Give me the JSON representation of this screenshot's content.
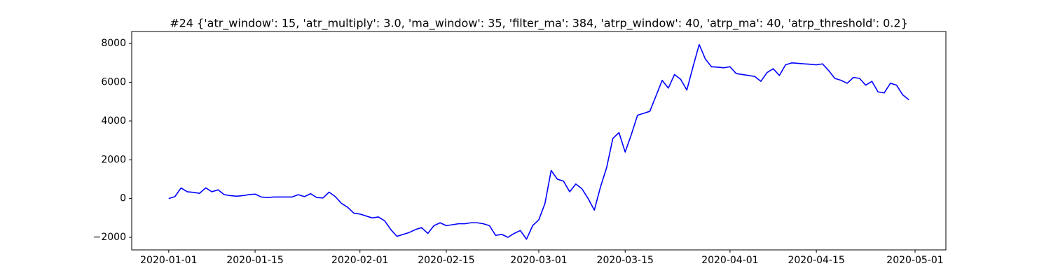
{
  "chart_data": {
    "type": "line",
    "title": "#24 {'atr_window': 15, 'atr_multiply': 3.0, 'ma_window': 35, 'filter_ma': 384, 'atrp_window': 40, 'atrp_ma': 40, 'atrp_threshold': 0.2}",
    "x": [
      "2020-01-01",
      "2020-01-02",
      "2020-01-03",
      "2020-01-04",
      "2020-01-05",
      "2020-01-06",
      "2020-01-07",
      "2020-01-08",
      "2020-01-09",
      "2020-01-10",
      "2020-01-11",
      "2020-01-12",
      "2020-01-13",
      "2020-01-14",
      "2020-01-15",
      "2020-01-16",
      "2020-01-17",
      "2020-01-18",
      "2020-01-19",
      "2020-01-20",
      "2020-01-21",
      "2020-01-22",
      "2020-01-23",
      "2020-01-24",
      "2020-01-25",
      "2020-01-26",
      "2020-01-27",
      "2020-01-28",
      "2020-01-29",
      "2020-01-30",
      "2020-01-31",
      "2020-02-01",
      "2020-02-02",
      "2020-02-03",
      "2020-02-04",
      "2020-02-05",
      "2020-02-06",
      "2020-02-07",
      "2020-02-08",
      "2020-02-09",
      "2020-02-10",
      "2020-02-11",
      "2020-02-12",
      "2020-02-13",
      "2020-02-14",
      "2020-02-15",
      "2020-02-16",
      "2020-02-17",
      "2020-02-18",
      "2020-02-19",
      "2020-02-20",
      "2020-02-21",
      "2020-02-22",
      "2020-02-23",
      "2020-02-24",
      "2020-02-25",
      "2020-02-26",
      "2020-02-27",
      "2020-02-28",
      "2020-02-29",
      "2020-03-01",
      "2020-03-02",
      "2020-03-03",
      "2020-03-04",
      "2020-03-05",
      "2020-03-06",
      "2020-03-07",
      "2020-03-08",
      "2020-03-09",
      "2020-03-10",
      "2020-03-11",
      "2020-03-12",
      "2020-03-13",
      "2020-03-14",
      "2020-03-15",
      "2020-03-16",
      "2020-03-17",
      "2020-03-18",
      "2020-03-19",
      "2020-03-20",
      "2020-03-21",
      "2020-03-22",
      "2020-03-23",
      "2020-03-24",
      "2020-03-25",
      "2020-03-26",
      "2020-03-27",
      "2020-03-28",
      "2020-03-29",
      "2020-03-30",
      "2020-03-31",
      "2020-04-01",
      "2020-04-02",
      "2020-04-03",
      "2020-04-04",
      "2020-04-05",
      "2020-04-06",
      "2020-04-07",
      "2020-04-08",
      "2020-04-09",
      "2020-04-10",
      "2020-04-11",
      "2020-04-12",
      "2020-04-13",
      "2020-04-14",
      "2020-04-15",
      "2020-04-16",
      "2020-04-17",
      "2020-04-18",
      "2020-04-19",
      "2020-04-20",
      "2020-04-21",
      "2020-04-22",
      "2020-04-23",
      "2020-04-24",
      "2020-04-25",
      "2020-04-26",
      "2020-04-27",
      "2020-04-28",
      "2020-04-29",
      "2020-04-30"
    ],
    "series": [
      {
        "color": "#0000ff",
        "values": [
          0,
          100,
          550,
          350,
          320,
          270,
          550,
          350,
          450,
          200,
          150,
          120,
          150,
          200,
          230,
          80,
          50,
          80,
          80,
          80,
          80,
          200,
          100,
          250,
          50,
          30,
          330,
          100,
          -250,
          -450,
          -750,
          -800,
          -900,
          -1000,
          -950,
          -1150,
          -1600,
          -1950,
          -1850,
          -1750,
          -1600,
          -1500,
          -1800,
          -1400,
          -1250,
          -1400,
          -1350,
          -1300,
          -1300,
          -1250,
          -1250,
          -1300,
          -1400,
          -1900,
          -1850,
          -2000,
          -1800,
          -1650,
          -2100,
          -1400,
          -1100,
          -250,
          1450,
          1000,
          900,
          350,
          750,
          500,
          0,
          -600,
          600,
          1600,
          3100,
          3400,
          2400,
          3300,
          4300,
          4400,
          4500,
          5300,
          6100,
          5700,
          6400,
          6150,
          5600,
          6800,
          7950,
          7200,
          6800,
          6780,
          6750,
          6800,
          6450,
          6400,
          6350,
          6300,
          6050,
          6500,
          6700,
          6350,
          6900,
          7000,
          6980,
          6950,
          6930,
          6900,
          6950,
          6600,
          6200,
          6100,
          5950,
          6250,
          6200,
          5850,
          6050,
          5500,
          5450,
          5950,
          5850,
          5350,
          5100
        ]
      }
    ],
    "xlim": [
      "2019-12-26",
      "2020-05-06"
    ],
    "xticks": [
      "2020-01-01",
      "2020-01-15",
      "2020-02-01",
      "2020-02-15",
      "2020-03-01",
      "2020-03-15",
      "2020-04-01",
      "2020-04-15",
      "2020-05-01"
    ],
    "ylim": [
      -2650,
      8620
    ],
    "yticks": [
      {
        "value": -2000,
        "label": "−2000"
      },
      0,
      2000,
      4000,
      6000,
      8000
    ]
  }
}
